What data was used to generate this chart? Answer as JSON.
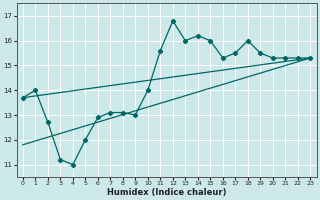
{
  "xlabel": "Humidex (Indice chaleur)",
  "bg_color": "#cce8e8",
  "line_color": "#006666",
  "grid_color": "#ffffff",
  "xlim": [
    -0.5,
    23.5
  ],
  "ylim": [
    10.5,
    17.5
  ],
  "xticks": [
    0,
    1,
    2,
    3,
    4,
    5,
    6,
    7,
    8,
    9,
    10,
    11,
    12,
    13,
    14,
    15,
    16,
    17,
    18,
    19,
    20,
    21,
    22,
    23
  ],
  "yticks": [
    11,
    12,
    13,
    14,
    15,
    16,
    17
  ],
  "series_trend1_x": [
    0,
    23
  ],
  "series_trend1_y": [
    13.7,
    15.3
  ],
  "series_trend2_x": [
    0,
    23
  ],
  "series_trend2_y": [
    11.8,
    15.3
  ],
  "series_dots_x": [
    0,
    1,
    2,
    3,
    4,
    5,
    6,
    7,
    8,
    9,
    10,
    11,
    12,
    13,
    14,
    15,
    16,
    17,
    18,
    19,
    20,
    21,
    22,
    23
  ],
  "series_dots_y": [
    13.7,
    14.0,
    12.7,
    11.2,
    11.0,
    12.0,
    12.9,
    13.1,
    13.1,
    13.0,
    14.0,
    15.6,
    16.8,
    16.0,
    16.2,
    16.0,
    15.3,
    15.5,
    16.0,
    15.5,
    15.3,
    15.3,
    15.3,
    15.3
  ]
}
